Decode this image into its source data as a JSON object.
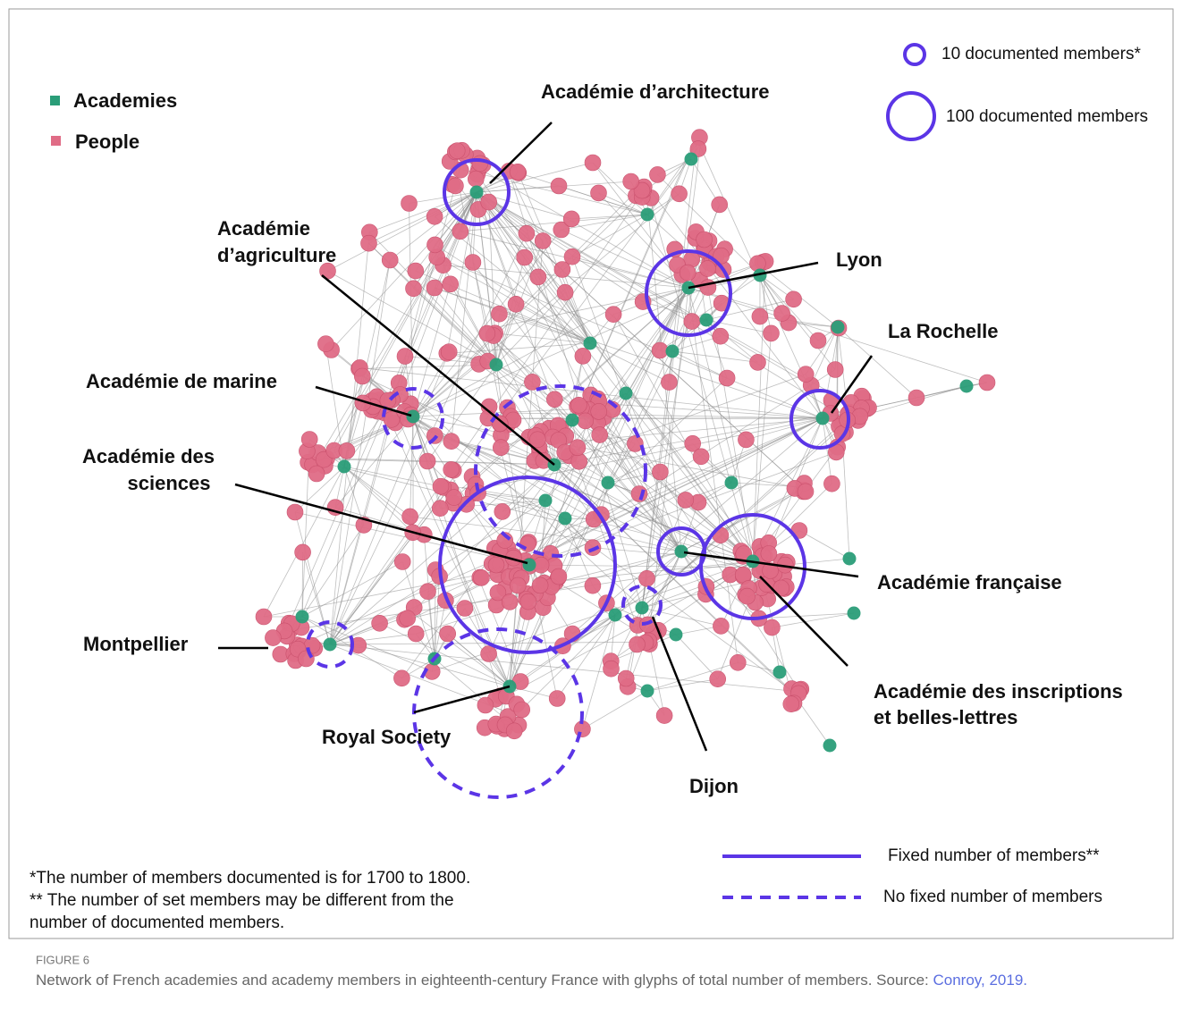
{
  "legend": {
    "academies": "Academies",
    "people": "People"
  },
  "size_legend": [
    "10 documented members*",
    "100 documented members"
  ],
  "line_legend": [
    "Fixed number of members**",
    "No fixed number of members"
  ],
  "labels": [
    {
      "lines": [
        "Académie d’architecture"
      ]
    },
    {
      "lines": [
        "Académie",
        "d’agriculture"
      ]
    },
    {
      "lines": [
        "Lyon"
      ]
    },
    {
      "lines": [
        "La Rochelle"
      ]
    },
    {
      "lines": [
        "Académie de marine"
      ]
    },
    {
      "lines": [
        "Académie des",
        "sciences"
      ]
    },
    {
      "lines": [
        "Académie française"
      ]
    },
    {
      "lines": [
        "Académie des inscriptions",
        "et belles-lettres"
      ]
    },
    {
      "lines": [
        "Montpellier"
      ]
    },
    {
      "lines": [
        "Royal Society"
      ]
    },
    {
      "lines": [
        "Dijon"
      ]
    }
  ],
  "notes": [
    "*The number of members documented is for 1700 to 1800.",
    "** The number of set members may be different from the",
    "number of documented members."
  ],
  "caption": {
    "figure": "FIGURE 6",
    "text": "Network of French academies and academy members in eighteenth-century France with glyphs of total number of members. Source: ",
    "link": "Conroy, 2019."
  }
}
